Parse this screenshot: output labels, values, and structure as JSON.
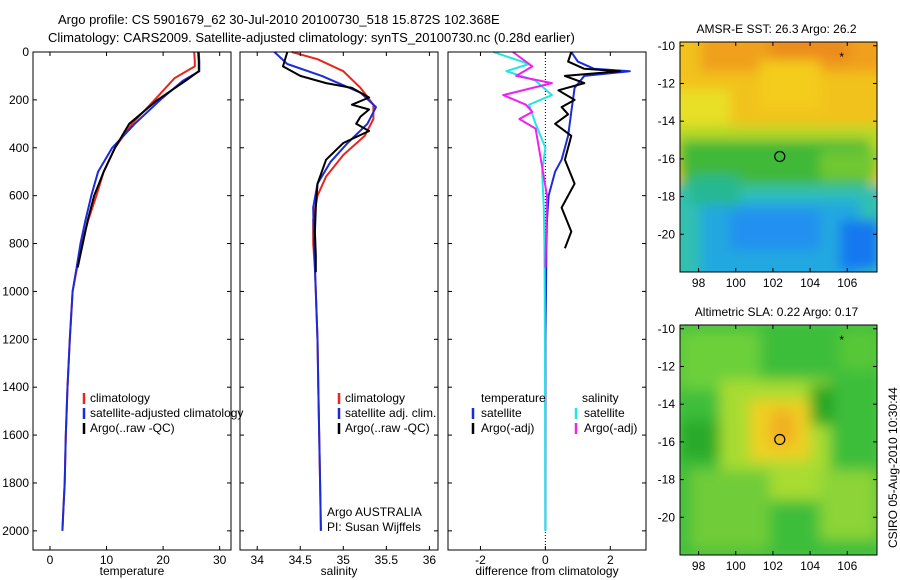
{
  "title": {
    "line1": "Argo profile: CS 5901679_62 30-Jul-2010 20100730_518 15.872S 102.368E",
    "line2": "Climatology: CARS2009. Satellite-adjusted climatology: synTS_20100730.nc (0.28d earlier)"
  },
  "side_label": "CSIRO 05-Aug-2010 10:30:44",
  "colors": {
    "climatology": "#e8261e",
    "satellite": "#1b2bd9",
    "argo": "#000000",
    "salinity_sat": "#22e6e6",
    "salinity_argo": "#ee22ee"
  },
  "chart_data": [
    {
      "type": "line",
      "title": "",
      "xlabel": "temperature",
      "xlim": [
        -3,
        32
      ],
      "ylim": [
        2080,
        0
      ],
      "xticks": [
        "0",
        "10",
        "20",
        "30"
      ],
      "xtick_values": [
        0,
        10,
        20,
        30
      ],
      "yticks": [
        "0",
        "200",
        "400",
        "600",
        "800",
        "1000",
        "1200",
        "1400",
        "1600",
        "1800",
        "2000"
      ],
      "ytick_values": [
        0,
        200,
        400,
        600,
        800,
        1000,
        1200,
        1400,
        1600,
        1800,
        2000
      ],
      "legend": [
        "climatology",
        "satellite-adjusted climatology",
        "Argo(..raw -QC)"
      ],
      "legend_position": "lower-right",
      "series": [
        {
          "name": "climatology",
          "color": "#e8261e",
          "x": [
            25.5,
            25.6,
            25.6,
            22,
            18.5,
            14.5,
            11.5,
            9.5,
            8.2,
            6.8,
            5.6,
            4.8,
            4.0,
            3.5,
            3.1,
            2.8,
            2.6,
            2.4,
            2.2
          ],
          "y": [
            0,
            40,
            60,
            110,
            200,
            300,
            400,
            500,
            600,
            700,
            800,
            900,
            1000,
            1200,
            1400,
            1600,
            1800,
            1900,
            2000
          ]
        },
        {
          "name": "satellite-adjusted climatology",
          "color": "#1b2bd9",
          "x": [
            26.3,
            26.4,
            26.4,
            23.5,
            19.5,
            15,
            11,
            8.5,
            7.3,
            6.3,
            5.4,
            4.7,
            4.0,
            3.5,
            3.1,
            2.8,
            2.6,
            2.4,
            2.2
          ],
          "y": [
            0,
            40,
            80,
            120,
            200,
            300,
            400,
            500,
            600,
            700,
            800,
            900,
            1000,
            1200,
            1400,
            1600,
            1800,
            1900,
            2000
          ]
        },
        {
          "name": "Argo(..raw -QC)",
          "color": "#000000",
          "x": [
            26.2,
            26.3,
            26.3,
            24,
            19,
            14,
            11.5,
            9.5,
            7.8,
            6.7,
            5.8,
            4.9
          ],
          "y": [
            0,
            40,
            80,
            120,
            200,
            300,
            400,
            500,
            600,
            700,
            800,
            900
          ]
        }
      ]
    },
    {
      "type": "line",
      "title": "",
      "xlabel": "salinity",
      "xlim": [
        33.8,
        36.1
      ],
      "ylim": [
        2080,
        0
      ],
      "xticks": [
        "34",
        "34.5",
        "35",
        "35.5",
        "36"
      ],
      "xtick_values": [
        34,
        34.5,
        35,
        35.5,
        36
      ],
      "yticks": [],
      "ytick_values": [],
      "legend": [
        "climatology",
        "satellite adj. clim.",
        "Argo(..raw -QC)"
      ],
      "legend_position": "lower-right",
      "annotation": [
        "Argo AUSTRALIA",
        "PI: Susan Wijffels"
      ],
      "series": [
        {
          "name": "climatology",
          "color": "#e8261e",
          "x": [
            34.4,
            34.7,
            35.0,
            35.2,
            35.35,
            35.35,
            35.25,
            35.0,
            34.8,
            34.7,
            34.65,
            34.65,
            34.67,
            34.68,
            34.7,
            34.71,
            34.72,
            34.73,
            34.74
          ],
          "y": [
            0,
            30,
            80,
            150,
            220,
            280,
            350,
            430,
            520,
            600,
            700,
            800,
            900,
            1000,
            1200,
            1400,
            1600,
            1800,
            2000
          ]
        },
        {
          "name": "satellite adj. clim.",
          "color": "#1b2bd9",
          "x": [
            34.2,
            34.35,
            34.75,
            35.2,
            35.38,
            35.28,
            35.05,
            34.85,
            34.7,
            34.65,
            34.66,
            34.67,
            34.68,
            34.7,
            34.71,
            34.72,
            34.73,
            34.74
          ],
          "y": [
            0,
            50,
            100,
            170,
            230,
            300,
            380,
            460,
            550,
            650,
            800,
            900,
            1000,
            1200,
            1400,
            1600,
            1800,
            2000
          ]
        },
        {
          "name": "Argo(..raw -QC)",
          "color": "#000000",
          "x": [
            34.35,
            34.3,
            34.5,
            34.8,
            35.1,
            35.3,
            35.1,
            35.3,
            35.2,
            35.15,
            35.3,
            35.0,
            34.8,
            34.7,
            34.68,
            34.67,
            34.68,
            34.68
          ],
          "y": [
            0,
            60,
            100,
            130,
            150,
            190,
            220,
            240,
            270,
            300,
            330,
            380,
            450,
            550,
            650,
            750,
            850,
            920
          ]
        }
      ]
    },
    {
      "type": "line",
      "title": "",
      "xlabel": "difference from climatology",
      "xlim": [
        -3,
        3.1
      ],
      "ylim": [
        2080,
        0
      ],
      "xticks": [
        "-2",
        "0",
        "2"
      ],
      "xtick_values": [
        -2,
        0,
        2
      ],
      "yticks": [],
      "ytick_values": [],
      "legend_groups": [
        {
          "heading": "temperature",
          "items": [
            "satellite",
            "Argo(-adj)"
          ]
        },
        {
          "heading": "salinity",
          "items": [
            "satellite",
            "Argo(-adj)"
          ]
        }
      ],
      "legend_position": "lower-center",
      "series": [
        {
          "name": "temperature satellite",
          "color": "#1b2bd9",
          "x": [
            0.8,
            1.0,
            1.5,
            2.6,
            1.2,
            0.9,
            0.8,
            0.7,
            0.6,
            0.5,
            0.3,
            0.1,
            0.05,
            0.03,
            0.02,
            0.0,
            0.0,
            0.0,
            0.0
          ],
          "y": [
            0,
            40,
            70,
            80,
            100,
            150,
            250,
            350,
            400,
            450,
            500,
            600,
            700,
            800,
            1000,
            1200,
            1500,
            1800,
            2000
          ]
        },
        {
          "name": "temperature Argo(-adj)",
          "color": "#000000",
          "x": [
            0.8,
            0.7,
            1.2,
            2.3,
            0.6,
            1.2,
            0.4,
            0.9,
            0.5,
            0.7,
            0.3,
            0.8,
            0.6,
            0.9,
            0.5,
            0.8,
            0.6
          ],
          "y": [
            0,
            40,
            70,
            80,
            100,
            130,
            160,
            200,
            230,
            260,
            300,
            350,
            450,
            550,
            650,
            750,
            820
          ]
        },
        {
          "name": "salinity satellite",
          "color": "#22e6e6",
          "x": [
            -1.6,
            -0.5,
            -1.2,
            -0.3,
            0.2,
            -0.5,
            -0.3,
            0.0,
            -0.1,
            -0.05,
            -0.03,
            -0.02,
            -0.01,
            0.0
          ],
          "y": [
            0,
            50,
            80,
            120,
            180,
            220,
            300,
            400,
            500,
            650,
            800,
            1000,
            1500,
            2000
          ]
        },
        {
          "name": "salinity Argo(-adj)",
          "color": "#ee22ee",
          "x": [
            -1.0,
            -0.4,
            -0.9,
            0.2,
            -1.3,
            -0.6,
            -0.4,
            -0.8,
            -0.3,
            -0.2,
            0.05,
            0.0
          ],
          "y": [
            0,
            60,
            100,
            130,
            180,
            220,
            250,
            280,
            320,
            400,
            600,
            900
          ]
        }
      ]
    },
    {
      "type": "heatmap",
      "title": "AMSR-E SST: 26.3 Argo: 26.2",
      "xlim": [
        97,
        107.6
      ],
      "ylim": [
        -22,
        -9.8
      ],
      "xticks": [
        "98",
        "100",
        "102",
        "104",
        "106"
      ],
      "xtick_values": [
        98,
        100,
        102,
        104,
        106
      ],
      "yticks": [
        "-10",
        "-12",
        "-14",
        "-16",
        "-18",
        "-20"
      ],
      "ytick_values": [
        -10,
        -12,
        -14,
        -16,
        -18,
        -20
      ],
      "marker_circle": {
        "lon": 102.368,
        "lat": -15.872
      },
      "marker_star": {
        "lon": 105.7,
        "lat": -10.6
      }
    },
    {
      "type": "heatmap",
      "title": "Altimetric SLA: 0.22 Argo: 0.17",
      "xlim": [
        97,
        107.6
      ],
      "ylim": [
        -22,
        -9.8
      ],
      "xticks": [
        "98",
        "100",
        "102",
        "104",
        "106"
      ],
      "xtick_values": [
        98,
        100,
        102,
        104,
        106
      ],
      "yticks": [
        "-10",
        "-12",
        "-14",
        "-16",
        "-18",
        "-20"
      ],
      "ytick_values": [
        -10,
        -12,
        -14,
        -16,
        -18,
        -20
      ],
      "marker_circle": {
        "lon": 102.368,
        "lat": -15.872
      },
      "marker_star": {
        "lon": 105.7,
        "lat": -10.6
      }
    }
  ]
}
